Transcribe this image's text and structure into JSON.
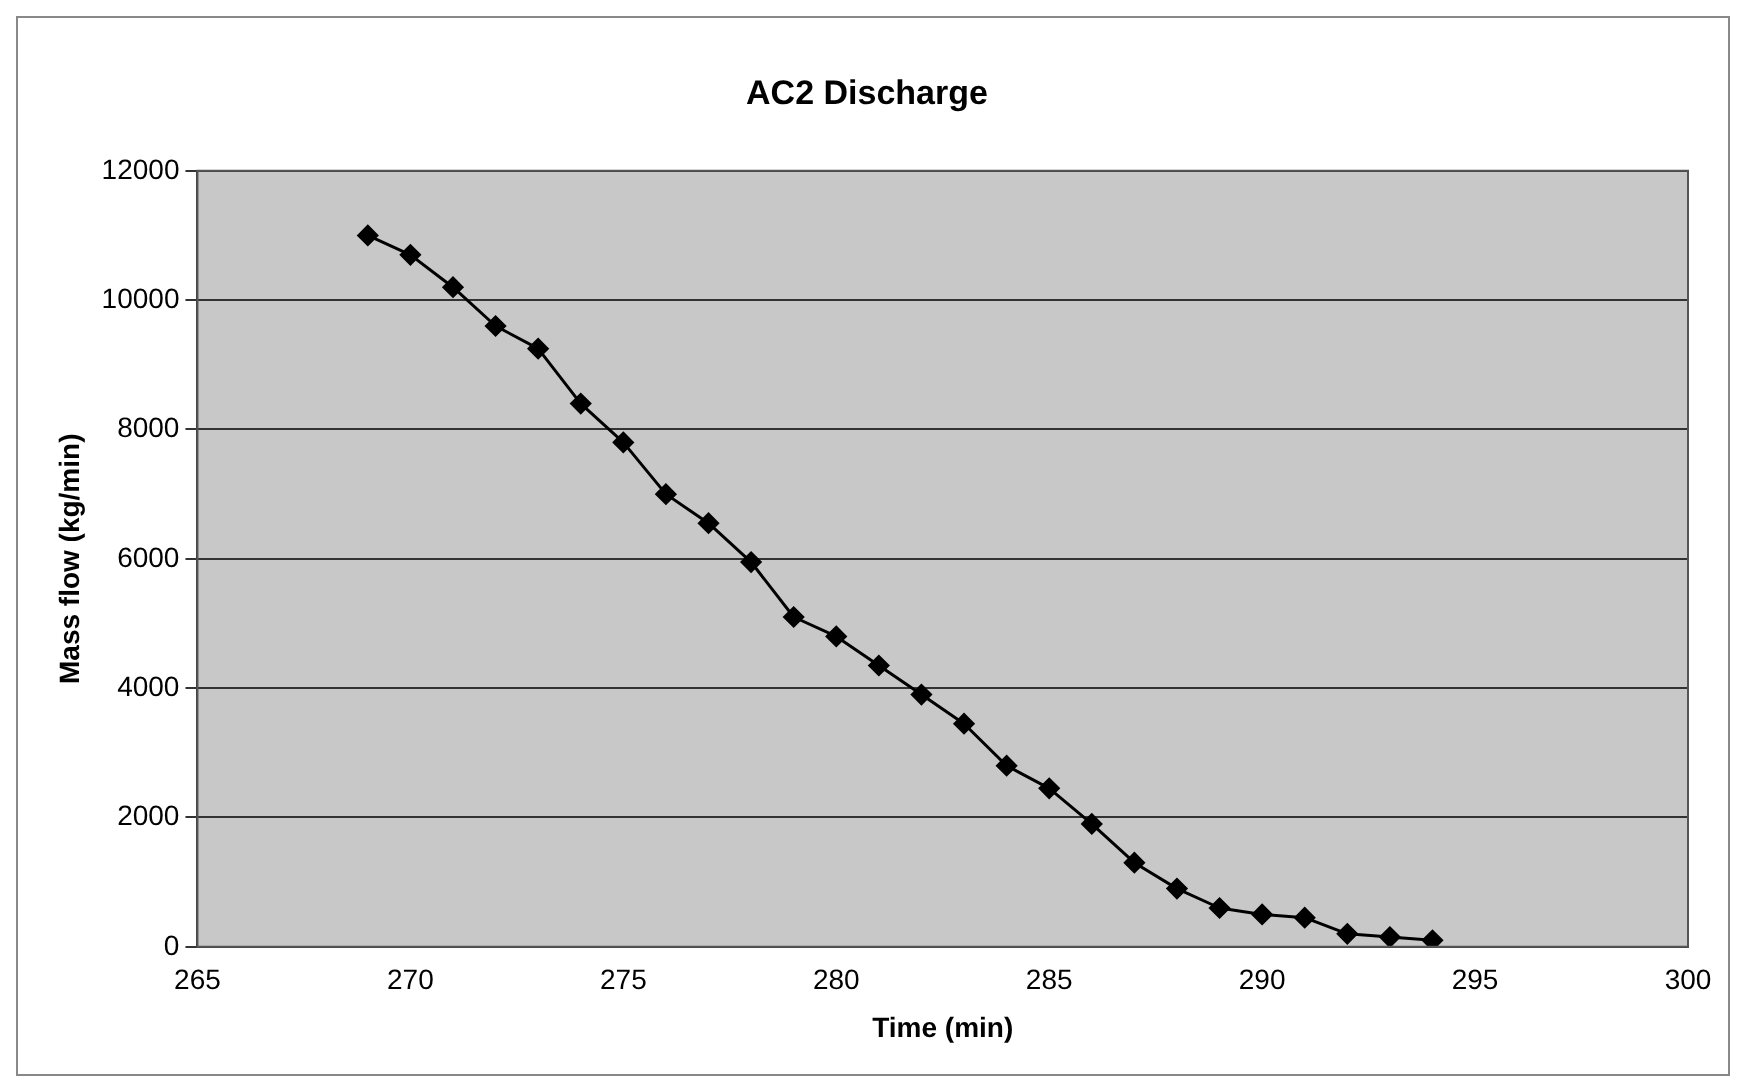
{
  "chart_data": {
    "type": "line",
    "title": "AC2 Discharge",
    "xlabel": "Time (min)",
    "ylabel": "Mass flow (kg/min)",
    "x": [
      269,
      270,
      271,
      272,
      273,
      274,
      275,
      276,
      277,
      278,
      279,
      280,
      281,
      282,
      283,
      284,
      285,
      286,
      287,
      288,
      289,
      290,
      291,
      292,
      293,
      294
    ],
    "series": [
      {
        "color": "#000000",
        "values": [
          11000,
          10700,
          10200,
          9600,
          9250,
          8400,
          7800,
          7000,
          6550,
          5950,
          5100,
          4800,
          4350,
          3900,
          3450,
          2800,
          2450,
          1900,
          1300,
          900,
          600,
          500,
          450,
          200,
          150,
          100
        ]
      }
    ],
    "xlim": [
      265,
      300
    ],
    "xticks": [
      265,
      270,
      275,
      280,
      285,
      290,
      295,
      300
    ],
    "ylim": [
      0,
      12000
    ],
    "yticks": [
      0,
      2000,
      4000,
      6000,
      8000,
      10000,
      12000
    ],
    "grid": "y",
    "legend": false,
    "marker": "diamond",
    "line_style": "solid"
  }
}
